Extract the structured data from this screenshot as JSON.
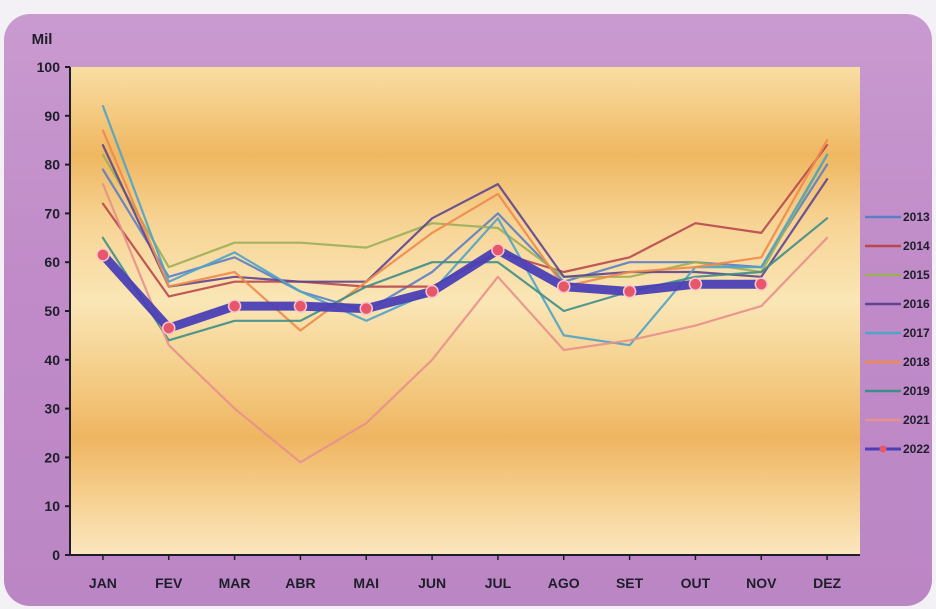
{
  "chart_data": {
    "type": "line",
    "unit_label": "Mil",
    "categories": [
      "JAN",
      "FEV",
      "MAR",
      "ABR",
      "MAI",
      "JUN",
      "JUL",
      "AGO",
      "SET",
      "OUT",
      "NOV",
      "DEZ"
    ],
    "ylim": [
      0,
      100
    ],
    "yticks": [
      0,
      10,
      20,
      30,
      40,
      50,
      60,
      70,
      80,
      90,
      100
    ],
    "grid": false,
    "legend_position": "right",
    "series": [
      {
        "name": "2013",
        "color": "#5b7fc4",
        "values": [
          79,
          57,
          61,
          54,
          50,
          58,
          70,
          56,
          60,
          60,
          59,
          80
        ]
      },
      {
        "name": "2014",
        "color": "#b8484e",
        "values": [
          72,
          53,
          56,
          56,
          55,
          55,
          62,
          58,
          61,
          68,
          66,
          84
        ]
      },
      {
        "name": "2015",
        "color": "#9caf58",
        "values": [
          82,
          59,
          64,
          64,
          63,
          68,
          67,
          57,
          57,
          60,
          58,
          82
        ]
      },
      {
        "name": "2016",
        "color": "#5e4590",
        "values": [
          84,
          55,
          57,
          56,
          56,
          69,
          76,
          57,
          58,
          58,
          57,
          77
        ]
      },
      {
        "name": "2017",
        "color": "#4ea3c9",
        "values": [
          92,
          56,
          62,
          54,
          48,
          54,
          69,
          45,
          43,
          59,
          59,
          82
        ]
      },
      {
        "name": "2018",
        "color": "#f08a4a",
        "values": [
          87,
          55,
          58,
          46,
          56,
          66,
          74,
          55,
          58,
          59,
          61,
          85
        ]
      },
      {
        "name": "2019",
        "color": "#3e8e88",
        "values": [
          65,
          44,
          48,
          48,
          55,
          60,
          60,
          50,
          54,
          57,
          58,
          69
        ]
      },
      {
        "name": "2021",
        "color": "#e8908c",
        "values": [
          76,
          43,
          30,
          19,
          27,
          40,
          57,
          42,
          44,
          47,
          51,
          65
        ]
      },
      {
        "name": "2022",
        "color": "#4a3fb5",
        "values": [
          61.5,
          46.5,
          51,
          51,
          50.5,
          54,
          62.5,
          55,
          54,
          55.5,
          55.5,
          null
        ],
        "emphasis": true
      }
    ]
  }
}
